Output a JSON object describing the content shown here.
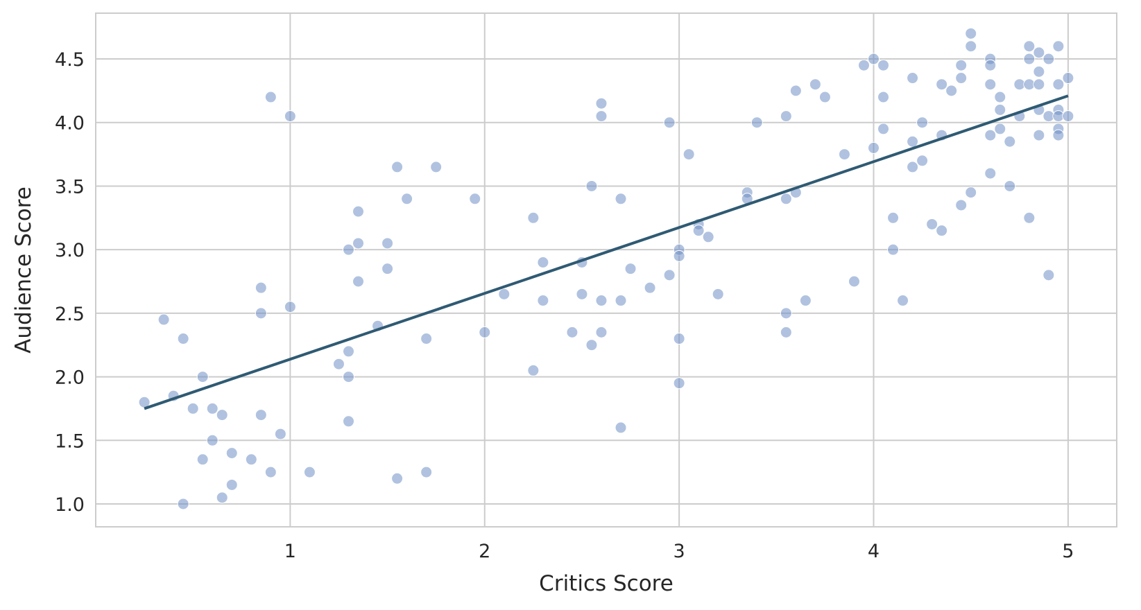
{
  "chart_data": {
    "type": "scatter",
    "xlabel": "Critics Score",
    "ylabel": "Audience Score",
    "xlim": [
      0.0,
      5.25
    ],
    "ylim": [
      0.82,
      4.86
    ],
    "xticks": [
      1,
      2,
      3,
      4,
      5
    ],
    "xtick_labels": [
      "1",
      "2",
      "3",
      "4",
      "5"
    ],
    "yticks": [
      1.0,
      1.5,
      2.0,
      2.5,
      3.0,
      3.5,
      4.0,
      4.5
    ],
    "ytick_labels": [
      "1.0",
      "1.5",
      "2.0",
      "2.5",
      "3.0",
      "3.5",
      "4.0",
      "4.5"
    ],
    "grid": true,
    "legend": false,
    "colors": {
      "points": "#6f8fc4",
      "line": "#2f5a73",
      "grid": "#cccccc",
      "text": "#262626"
    },
    "points": [
      [
        0.25,
        1.8
      ],
      [
        0.35,
        2.45
      ],
      [
        0.4,
        1.85
      ],
      [
        0.45,
        2.3
      ],
      [
        0.45,
        1.0
      ],
      [
        0.5,
        1.75
      ],
      [
        0.55,
        2.0
      ],
      [
        0.55,
        1.35
      ],
      [
        0.6,
        1.75
      ],
      [
        0.6,
        1.5
      ],
      [
        0.65,
        1.7
      ],
      [
        0.65,
        1.05
      ],
      [
        0.7,
        1.4
      ],
      [
        0.7,
        1.15
      ],
      [
        0.8,
        1.35
      ],
      [
        0.85,
        2.7
      ],
      [
        0.85,
        2.5
      ],
      [
        0.85,
        1.7
      ],
      [
        0.9,
        4.2
      ],
      [
        0.9,
        1.25
      ],
      [
        0.95,
        1.55
      ],
      [
        1.0,
        4.05
      ],
      [
        1.0,
        2.55
      ],
      [
        1.1,
        1.25
      ],
      [
        1.25,
        2.1
      ],
      [
        1.3,
        3.0
      ],
      [
        1.3,
        2.2
      ],
      [
        1.3,
        2.0
      ],
      [
        1.3,
        1.65
      ],
      [
        1.35,
        3.3
      ],
      [
        1.35,
        3.05
      ],
      [
        1.35,
        2.75
      ],
      [
        1.45,
        2.4
      ],
      [
        1.5,
        3.05
      ],
      [
        1.5,
        2.85
      ],
      [
        1.55,
        3.65
      ],
      [
        1.55,
        1.2
      ],
      [
        1.6,
        3.4
      ],
      [
        1.7,
        2.3
      ],
      [
        1.7,
        1.25
      ],
      [
        1.75,
        3.65
      ],
      [
        1.95,
        3.4
      ],
      [
        2.0,
        2.35
      ],
      [
        2.1,
        2.65
      ],
      [
        2.25,
        3.25
      ],
      [
        2.25,
        2.05
      ],
      [
        2.3,
        2.9
      ],
      [
        2.3,
        2.6
      ],
      [
        2.45,
        2.35
      ],
      [
        2.5,
        2.9
      ],
      [
        2.5,
        2.65
      ],
      [
        2.55,
        3.5
      ],
      [
        2.55,
        2.25
      ],
      [
        2.6,
        4.15
      ],
      [
        2.6,
        4.05
      ],
      [
        2.6,
        2.6
      ],
      [
        2.6,
        2.35
      ],
      [
        2.7,
        3.4
      ],
      [
        2.7,
        2.6
      ],
      [
        2.7,
        1.6
      ],
      [
        2.75,
        2.85
      ],
      [
        2.85,
        2.7
      ],
      [
        2.95,
        4.0
      ],
      [
        2.95,
        2.8
      ],
      [
        3.0,
        3.0
      ],
      [
        3.0,
        2.95
      ],
      [
        3.0,
        2.3
      ],
      [
        3.0,
        1.95
      ],
      [
        3.05,
        3.75
      ],
      [
        3.1,
        3.2
      ],
      [
        3.1,
        3.15
      ],
      [
        3.15,
        3.1
      ],
      [
        3.2,
        2.65
      ],
      [
        3.35,
        3.45
      ],
      [
        3.35,
        3.4
      ],
      [
        3.4,
        4.0
      ],
      [
        3.55,
        4.05
      ],
      [
        3.55,
        3.4
      ],
      [
        3.55,
        2.5
      ],
      [
        3.55,
        2.35
      ],
      [
        3.6,
        4.25
      ],
      [
        3.6,
        3.45
      ],
      [
        3.65,
        2.6
      ],
      [
        3.7,
        4.3
      ],
      [
        3.75,
        4.2
      ],
      [
        3.85,
        3.75
      ],
      [
        3.9,
        2.75
      ],
      [
        3.95,
        4.45
      ],
      [
        4.0,
        4.5
      ],
      [
        4.0,
        3.8
      ],
      [
        4.05,
        4.45
      ],
      [
        4.05,
        4.2
      ],
      [
        4.05,
        3.95
      ],
      [
        4.1,
        3.25
      ],
      [
        4.1,
        3.0
      ],
      [
        4.15,
        2.6
      ],
      [
        4.2,
        4.35
      ],
      [
        4.2,
        3.85
      ],
      [
        4.2,
        3.65
      ],
      [
        4.25,
        4.0
      ],
      [
        4.25,
        3.7
      ],
      [
        4.3,
        3.2
      ],
      [
        4.35,
        4.3
      ],
      [
        4.35,
        3.9
      ],
      [
        4.35,
        3.15
      ],
      [
        4.4,
        4.25
      ],
      [
        4.45,
        4.45
      ],
      [
        4.45,
        4.35
      ],
      [
        4.45,
        3.35
      ],
      [
        4.5,
        4.7
      ],
      [
        4.5,
        4.6
      ],
      [
        4.5,
        3.45
      ],
      [
        4.6,
        4.5
      ],
      [
        4.6,
        4.45
      ],
      [
        4.6,
        4.3
      ],
      [
        4.6,
        3.9
      ],
      [
        4.6,
        3.6
      ],
      [
        4.65,
        4.2
      ],
      [
        4.65,
        4.1
      ],
      [
        4.65,
        3.95
      ],
      [
        4.7,
        3.85
      ],
      [
        4.7,
        3.5
      ],
      [
        4.75,
        4.3
      ],
      [
        4.75,
        4.05
      ],
      [
        4.8,
        4.6
      ],
      [
        4.8,
        4.5
      ],
      [
        4.8,
        4.3
      ],
      [
        4.8,
        3.25
      ],
      [
        4.85,
        4.55
      ],
      [
        4.85,
        4.4
      ],
      [
        4.85,
        4.3
      ],
      [
        4.85,
        4.1
      ],
      [
        4.85,
        3.9
      ],
      [
        4.9,
        4.5
      ],
      [
        4.9,
        4.05
      ],
      [
        4.9,
        2.8
      ],
      [
        4.95,
        4.6
      ],
      [
        4.95,
        4.3
      ],
      [
        4.95,
        4.1
      ],
      [
        4.95,
        4.05
      ],
      [
        4.95,
        3.95
      ],
      [
        4.95,
        3.9
      ],
      [
        5.0,
        4.35
      ],
      [
        5.0,
        4.05
      ]
    ],
    "regression_line": {
      "x": [
        0.25,
        5.0
      ],
      "y": [
        1.75,
        4.21
      ]
    }
  }
}
